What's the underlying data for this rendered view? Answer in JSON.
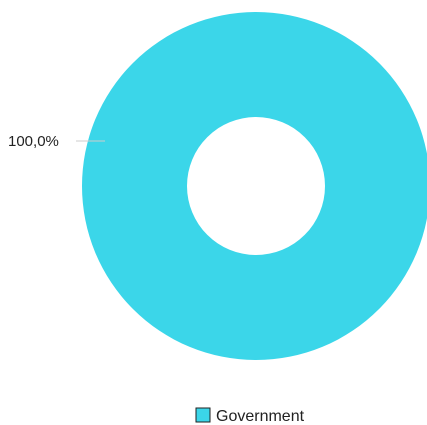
{
  "chart_data": {
    "type": "pie",
    "donut": true,
    "categories": [
      "Government"
    ],
    "values": [
      100.0
    ],
    "data_labels": [
      "100,0%"
    ],
    "legend": {
      "placement": "bottom",
      "entries": [
        "Government"
      ]
    },
    "colors": [
      "#3bd6e9"
    ],
    "title": "",
    "xlabel": "",
    "ylabel": ""
  }
}
